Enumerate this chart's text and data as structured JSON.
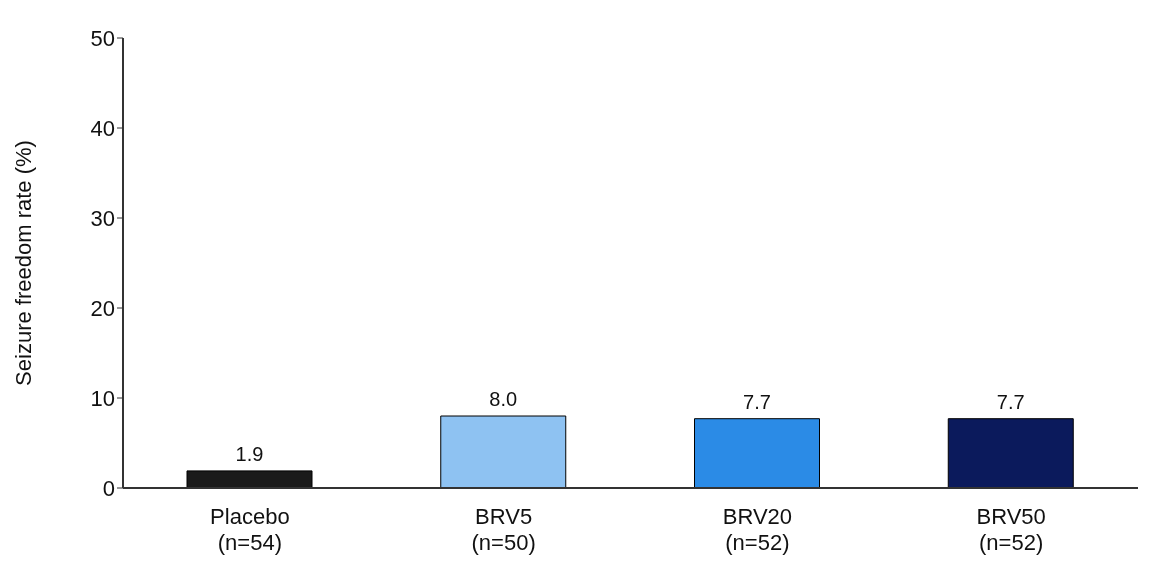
{
  "chart_data": {
    "type": "bar",
    "ylabel": "Seizure freedom rate (%)",
    "categories": [
      "Placebo\n(n=54)",
      "BRV5\n(n=50)",
      "BRV20\n(n=52)",
      "BRV50\n(n=52)"
    ],
    "values": [
      1.9,
      8.0,
      7.7,
      7.7
    ],
    "colors": [
      "#1a1a1a",
      "#8ec2f2",
      "#2b8be6",
      "#0b1a5c"
    ],
    "value_labels": [
      "1.9",
      "8.0",
      "7.7",
      "7.7"
    ],
    "ylim": [
      0,
      50
    ],
    "yticks": [
      0,
      10,
      20,
      30,
      40,
      50
    ],
    "grid": false
  }
}
